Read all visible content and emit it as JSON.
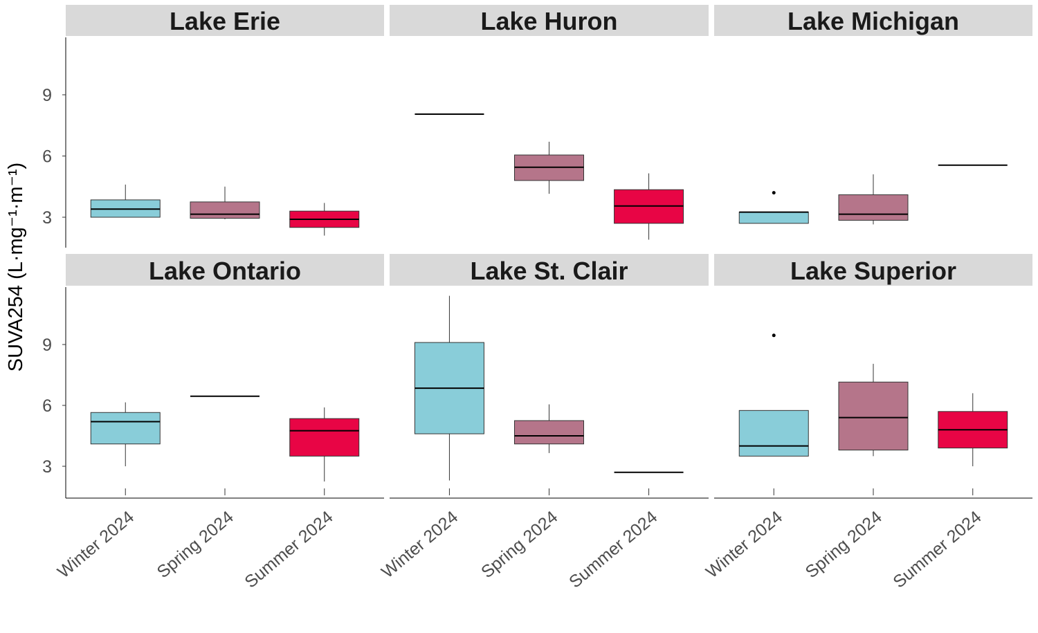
{
  "chart_data": {
    "type": "boxplot",
    "ylabel": "SUVA254 (L·mg⁻¹·m⁻¹)",
    "y_ticks": [
      3,
      6,
      9
    ],
    "ylim": [
      1.5,
      11.9
    ],
    "categories": [
      "Winter 2024",
      "Spring 2024",
      "Summer 2024"
    ],
    "colors": {
      "Winter 2024": "#89cdd9",
      "Spring 2024": "#b5758a",
      "Summer 2024": "#e80545"
    },
    "grid": false,
    "legend": "none",
    "panels": [
      {
        "name": "Lake Erie",
        "boxes": [
          {
            "category": "Winter 2024",
            "min": 3.0,
            "q1": 3.0,
            "median": 3.4,
            "q3": 3.85,
            "max": 4.6,
            "outliers": []
          },
          {
            "category": "Spring 2024",
            "min": 2.9,
            "q1": 2.95,
            "median": 3.15,
            "q3": 3.75,
            "max": 4.5,
            "outliers": []
          },
          {
            "category": "Summer 2024",
            "min": 2.1,
            "q1": 2.5,
            "median": 2.9,
            "q3": 3.3,
            "max": 3.7,
            "outliers": []
          }
        ]
      },
      {
        "name": "Lake Huron",
        "boxes": [
          {
            "category": "Winter 2024",
            "min": 8.05,
            "q1": 8.05,
            "median": 8.05,
            "q3": 8.05,
            "max": 8.05,
            "outliers": []
          },
          {
            "category": "Spring 2024",
            "min": 4.15,
            "q1": 4.8,
            "median": 5.45,
            "q3": 6.05,
            "max": 6.7,
            "outliers": []
          },
          {
            "category": "Summer 2024",
            "min": 1.9,
            "q1": 2.7,
            "median": 3.55,
            "q3": 4.35,
            "max": 5.15,
            "outliers": []
          }
        ]
      },
      {
        "name": "Lake Michigan",
        "boxes": [
          {
            "category": "Winter 2024",
            "min": 2.7,
            "q1": 2.7,
            "median": 3.25,
            "q3": 3.25,
            "max": 3.25,
            "outliers": [
              4.2
            ]
          },
          {
            "category": "Spring 2024",
            "min": 2.65,
            "q1": 2.85,
            "median": 3.15,
            "q3": 4.1,
            "max": 5.1,
            "outliers": []
          },
          {
            "category": "Summer 2024",
            "min": 5.55,
            "q1": 5.55,
            "median": 5.55,
            "q3": 5.55,
            "max": 5.55,
            "outliers": []
          }
        ]
      },
      {
        "name": "Lake Ontario",
        "boxes": [
          {
            "category": "Winter 2024",
            "min": 3.0,
            "q1": 4.1,
            "median": 5.2,
            "q3": 5.65,
            "max": 6.15,
            "outliers": []
          },
          {
            "category": "Spring 2024",
            "min": 6.45,
            "q1": 6.45,
            "median": 6.45,
            "q3": 6.45,
            "max": 6.45,
            "outliers": []
          },
          {
            "category": "Summer 2024",
            "min": 2.25,
            "q1": 3.5,
            "median": 4.75,
            "q3": 5.35,
            "max": 5.9,
            "outliers": []
          }
        ]
      },
      {
        "name": "Lake St. Clair",
        "boxes": [
          {
            "category": "Winter 2024",
            "min": 2.3,
            "q1": 4.6,
            "median": 6.85,
            "q3": 9.1,
            "max": 11.4,
            "outliers": []
          },
          {
            "category": "Spring 2024",
            "min": 3.65,
            "q1": 4.1,
            "median": 4.5,
            "q3": 5.25,
            "max": 6.05,
            "outliers": []
          },
          {
            "category": "Summer 2024",
            "min": 2.7,
            "q1": 2.7,
            "median": 2.7,
            "q3": 2.7,
            "max": 2.7,
            "outliers": []
          }
        ]
      },
      {
        "name": "Lake Superior",
        "boxes": [
          {
            "category": "Winter 2024",
            "min": 3.5,
            "q1": 3.5,
            "median": 4.0,
            "q3": 5.75,
            "max": 5.75,
            "outliers": [
              9.45
            ]
          },
          {
            "category": "Spring 2024",
            "min": 3.5,
            "q1": 3.8,
            "median": 5.4,
            "q3": 7.15,
            "max": 8.05,
            "outliers": []
          },
          {
            "category": "Summer 2024",
            "min": 3.0,
            "q1": 3.9,
            "median": 4.8,
            "q3": 5.7,
            "max": 6.6,
            "outliers": []
          }
        ]
      }
    ]
  }
}
